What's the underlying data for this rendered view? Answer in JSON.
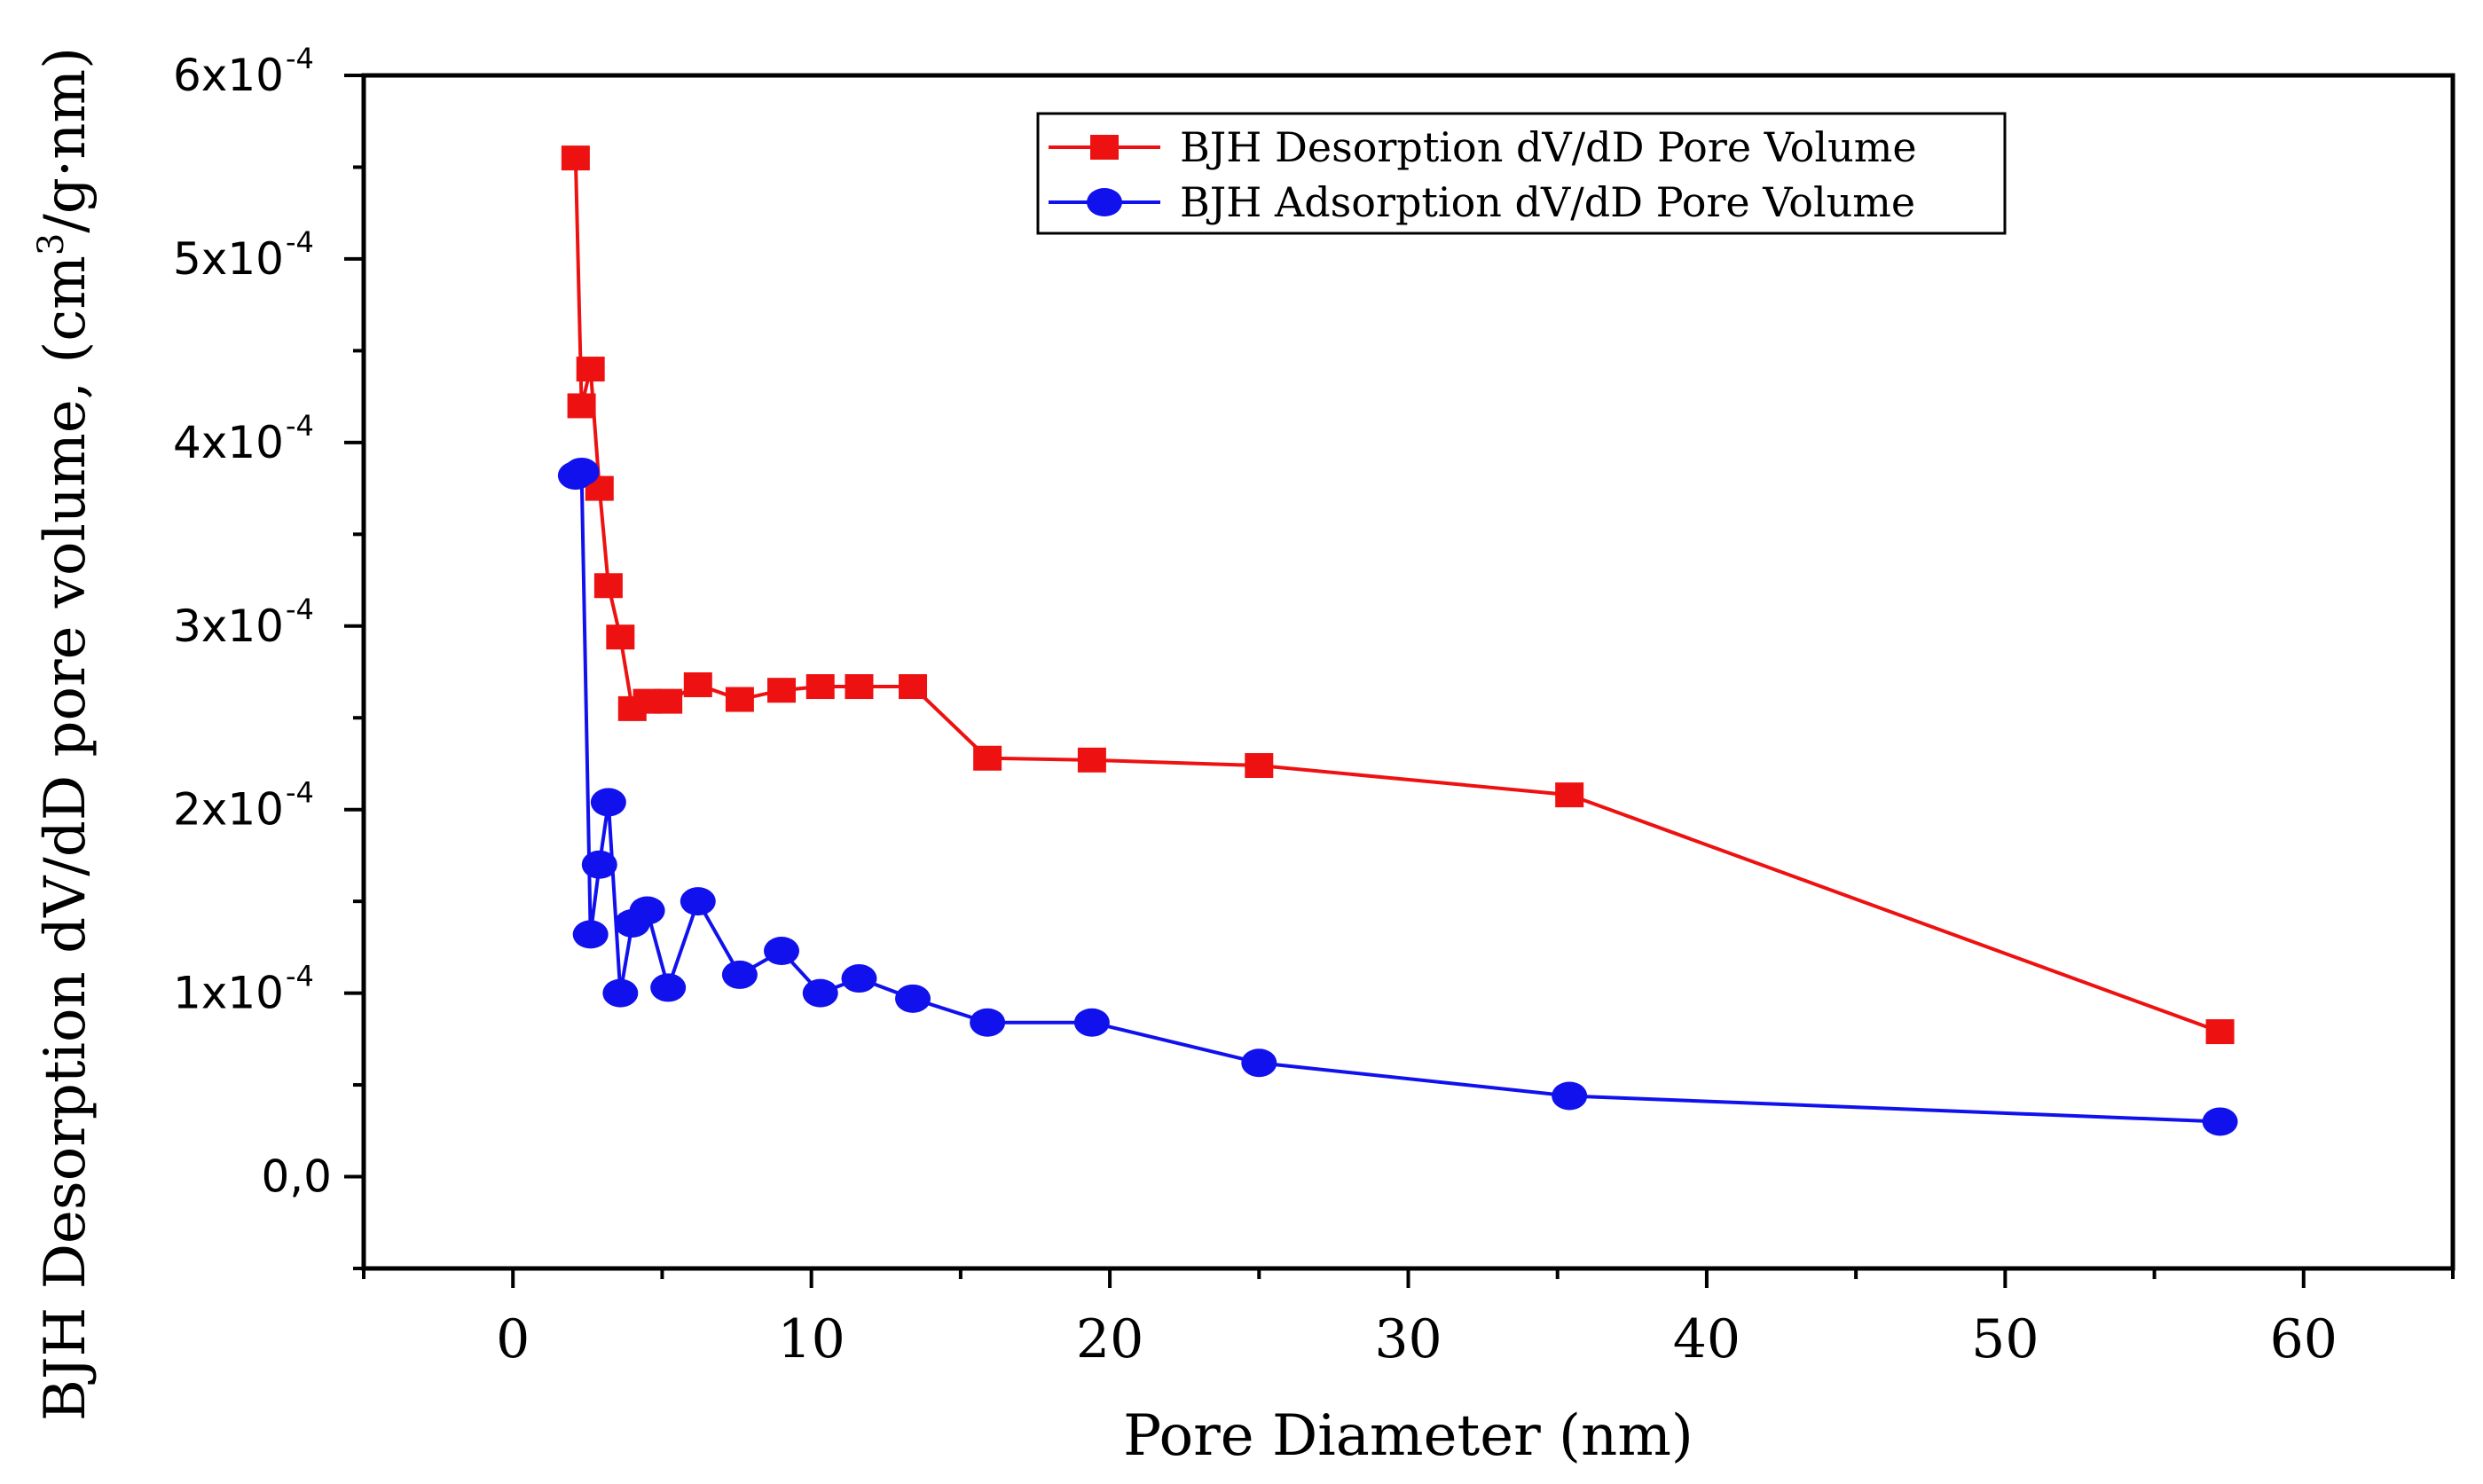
{
  "chart_data": {
    "type": "line",
    "xlabel": "Pore Diameter (nm)",
    "ylabel": "BJH Desorption dV/dD pore volume, (cm³/g·nm)",
    "ylabel_parts": {
      "before": "BJH Desorption dV/dD pore volume, (cm",
      "sup": "3",
      "after": "/g·nm)"
    },
    "xlim": [
      -5,
      65
    ],
    "ylim": [
      -0.5,
      6
    ],
    "y_scale_note": "values in units of 1e-4",
    "x_ticks": [
      0,
      10,
      20,
      30,
      40,
      50,
      60
    ],
    "x_tick_labels": [
      "0",
      "10",
      "20",
      "30",
      "40",
      "50",
      "60"
    ],
    "y_ticks": [
      0,
      1,
      2,
      3,
      4,
      5,
      6
    ],
    "y_tick_labels": [
      {
        "mant": "0,0",
        "exp": ""
      },
      {
        "mant": "1x10",
        "exp": "-4"
      },
      {
        "mant": "2x10",
        "exp": "-4"
      },
      {
        "mant": "3x10",
        "exp": "-4"
      },
      {
        "mant": "4x10",
        "exp": "-4"
      },
      {
        "mant": "5x10",
        "exp": "-4"
      },
      {
        "mant": "6x10",
        "exp": "-4"
      }
    ],
    "legend_position": "top-right",
    "series": [
      {
        "name": "BJH Desorption dV/dD Pore Volume",
        "color": "#ee1111",
        "marker": "square",
        "x": [
          2.1,
          2.3,
          2.6,
          2.9,
          3.2,
          3.6,
          4.0,
          4.5,
          5.2,
          6.2,
          7.6,
          9.0,
          10.3,
          11.6,
          13.4,
          15.9,
          19.4,
          25.0,
          35.4,
          57.2
        ],
        "y": [
          5.55,
          4.2,
          4.4,
          3.75,
          3.22,
          2.94,
          2.55,
          2.59,
          2.59,
          2.68,
          2.6,
          2.65,
          2.67,
          2.67,
          2.67,
          2.28,
          2.27,
          2.24,
          2.08,
          0.79
        ]
      },
      {
        "name": "BJH Adsorption dV/dD Pore Volume",
        "color": "#1111ee",
        "marker": "circle",
        "x": [
          2.1,
          2.3,
          2.6,
          2.9,
          3.2,
          3.6,
          4.0,
          4.5,
          5.2,
          6.2,
          7.6,
          9.0,
          10.3,
          11.6,
          13.4,
          15.9,
          19.4,
          25.0,
          35.4,
          57.2
        ],
        "y": [
          3.82,
          3.84,
          1.32,
          1.7,
          2.04,
          1.0,
          1.38,
          1.45,
          1.03,
          1.5,
          1.1,
          1.23,
          1.0,
          1.08,
          0.97,
          0.84,
          0.84,
          0.62,
          0.44,
          0.3
        ]
      }
    ]
  }
}
